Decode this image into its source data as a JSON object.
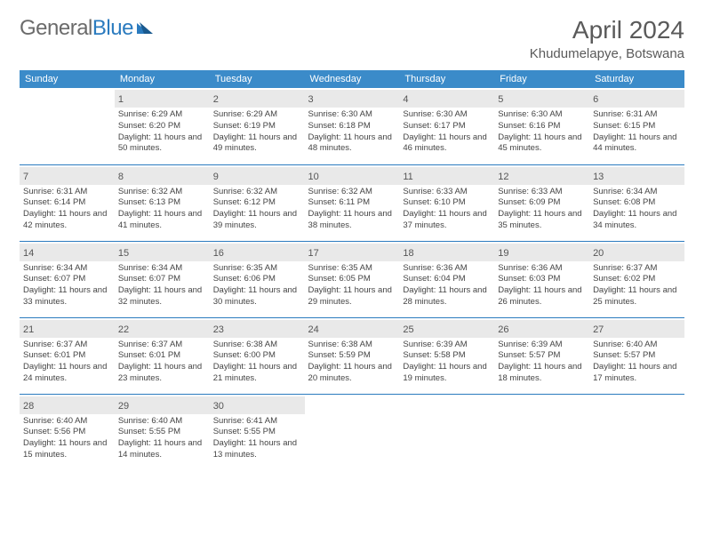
{
  "logo": {
    "general": "General",
    "blue": "Blue"
  },
  "title": "April 2024",
  "location": "Khudumelapye, Botswana",
  "colors": {
    "header_bg": "#3b8bc9",
    "header_text": "#ffffff",
    "daynum_bg": "#e9e9e9",
    "rule": "#2b7bbf",
    "logo_gray": "#6b6b6b",
    "logo_blue": "#2b7bbf",
    "text": "#444444"
  },
  "day_headers": [
    "Sunday",
    "Monday",
    "Tuesday",
    "Wednesday",
    "Thursday",
    "Friday",
    "Saturday"
  ],
  "weeks": [
    [
      null,
      {
        "n": "1",
        "sr": "6:29 AM",
        "ss": "6:20 PM",
        "dl": "11 hours and 50 minutes."
      },
      {
        "n": "2",
        "sr": "6:29 AM",
        "ss": "6:19 PM",
        "dl": "11 hours and 49 minutes."
      },
      {
        "n": "3",
        "sr": "6:30 AM",
        "ss": "6:18 PM",
        "dl": "11 hours and 48 minutes."
      },
      {
        "n": "4",
        "sr": "6:30 AM",
        "ss": "6:17 PM",
        "dl": "11 hours and 46 minutes."
      },
      {
        "n": "5",
        "sr": "6:30 AM",
        "ss": "6:16 PM",
        "dl": "11 hours and 45 minutes."
      },
      {
        "n": "6",
        "sr": "6:31 AM",
        "ss": "6:15 PM",
        "dl": "11 hours and 44 minutes."
      }
    ],
    [
      {
        "n": "7",
        "sr": "6:31 AM",
        "ss": "6:14 PM",
        "dl": "11 hours and 42 minutes."
      },
      {
        "n": "8",
        "sr": "6:32 AM",
        "ss": "6:13 PM",
        "dl": "11 hours and 41 minutes."
      },
      {
        "n": "9",
        "sr": "6:32 AM",
        "ss": "6:12 PM",
        "dl": "11 hours and 39 minutes."
      },
      {
        "n": "10",
        "sr": "6:32 AM",
        "ss": "6:11 PM",
        "dl": "11 hours and 38 minutes."
      },
      {
        "n": "11",
        "sr": "6:33 AM",
        "ss": "6:10 PM",
        "dl": "11 hours and 37 minutes."
      },
      {
        "n": "12",
        "sr": "6:33 AM",
        "ss": "6:09 PM",
        "dl": "11 hours and 35 minutes."
      },
      {
        "n": "13",
        "sr": "6:34 AM",
        "ss": "6:08 PM",
        "dl": "11 hours and 34 minutes."
      }
    ],
    [
      {
        "n": "14",
        "sr": "6:34 AM",
        "ss": "6:07 PM",
        "dl": "11 hours and 33 minutes."
      },
      {
        "n": "15",
        "sr": "6:34 AM",
        "ss": "6:07 PM",
        "dl": "11 hours and 32 minutes."
      },
      {
        "n": "16",
        "sr": "6:35 AM",
        "ss": "6:06 PM",
        "dl": "11 hours and 30 minutes."
      },
      {
        "n": "17",
        "sr": "6:35 AM",
        "ss": "6:05 PM",
        "dl": "11 hours and 29 minutes."
      },
      {
        "n": "18",
        "sr": "6:36 AM",
        "ss": "6:04 PM",
        "dl": "11 hours and 28 minutes."
      },
      {
        "n": "19",
        "sr": "6:36 AM",
        "ss": "6:03 PM",
        "dl": "11 hours and 26 minutes."
      },
      {
        "n": "20",
        "sr": "6:37 AM",
        "ss": "6:02 PM",
        "dl": "11 hours and 25 minutes."
      }
    ],
    [
      {
        "n": "21",
        "sr": "6:37 AM",
        "ss": "6:01 PM",
        "dl": "11 hours and 24 minutes."
      },
      {
        "n": "22",
        "sr": "6:37 AM",
        "ss": "6:01 PM",
        "dl": "11 hours and 23 minutes."
      },
      {
        "n": "23",
        "sr": "6:38 AM",
        "ss": "6:00 PM",
        "dl": "11 hours and 21 minutes."
      },
      {
        "n": "24",
        "sr": "6:38 AM",
        "ss": "5:59 PM",
        "dl": "11 hours and 20 minutes."
      },
      {
        "n": "25",
        "sr": "6:39 AM",
        "ss": "5:58 PM",
        "dl": "11 hours and 19 minutes."
      },
      {
        "n": "26",
        "sr": "6:39 AM",
        "ss": "5:57 PM",
        "dl": "11 hours and 18 minutes."
      },
      {
        "n": "27",
        "sr": "6:40 AM",
        "ss": "5:57 PM",
        "dl": "11 hours and 17 minutes."
      }
    ],
    [
      {
        "n": "28",
        "sr": "6:40 AM",
        "ss": "5:56 PM",
        "dl": "11 hours and 15 minutes."
      },
      {
        "n": "29",
        "sr": "6:40 AM",
        "ss": "5:55 PM",
        "dl": "11 hours and 14 minutes."
      },
      {
        "n": "30",
        "sr": "6:41 AM",
        "ss": "5:55 PM",
        "dl": "11 hours and 13 minutes."
      },
      null,
      null,
      null,
      null
    ]
  ],
  "labels": {
    "sunrise": "Sunrise:",
    "sunset": "Sunset:",
    "daylight": "Daylight:"
  }
}
